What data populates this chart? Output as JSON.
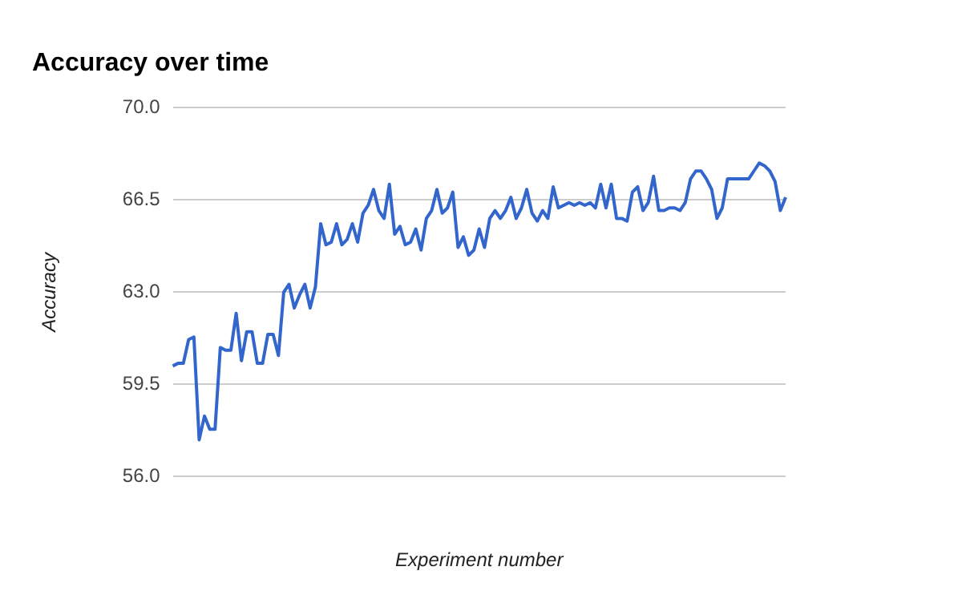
{
  "chart_data": {
    "type": "line",
    "title": "Accuracy over time",
    "xlabel": "Experiment number",
    "ylabel": "Accuracy",
    "categories": [
      null,
      null,
      null,
      null,
      null,
      null,
      null,
      null,
      null,
      null,
      null,
      null,
      null,
      null,
      null,
      null,
      null,
      null,
      null,
      null,
      null,
      null,
      null,
      null,
      null,
      null,
      null,
      null,
      null,
      null,
      null,
      null,
      null,
      null,
      null,
      null,
      null,
      null,
      null,
      null,
      null,
      null,
      null,
      null,
      null,
      null,
      null,
      null,
      null,
      null,
      null,
      null,
      null,
      null,
      null,
      null,
      null,
      null,
      null,
      null,
      null,
      null,
      null,
      null,
      null,
      null,
      null,
      null,
      null,
      null,
      null,
      null,
      null,
      null,
      null,
      null,
      null,
      null,
      null,
      null,
      null,
      null,
      null,
      null,
      null,
      null,
      null,
      null,
      null,
      null,
      null,
      null,
      null,
      null,
      null,
      null,
      null,
      null,
      null,
      null,
      null,
      null,
      null,
      null,
      null,
      null,
      null,
      null,
      null,
      null,
      null,
      null,
      null,
      null,
      null,
      null,
      null
    ],
    "series": [
      {
        "color": "#3366cc",
        "values": [
          60.2,
          60.3,
          60.3,
          61.2,
          61.3,
          57.4,
          58.3,
          57.8,
          57.8,
          60.9,
          60.8,
          60.8,
          62.2,
          60.4,
          61.5,
          61.5,
          60.3,
          60.3,
          61.4,
          61.4,
          60.6,
          63.0,
          63.3,
          62.4,
          62.9,
          63.3,
          62.4,
          63.2,
          65.6,
          64.8,
          64.9,
          65.6,
          64.8,
          65.0,
          65.6,
          64.9,
          66.0,
          66.3,
          66.9,
          66.1,
          65.8,
          67.1,
          65.2,
          65.5,
          64.8,
          64.9,
          65.4,
          64.6,
          65.8,
          66.1,
          66.9,
          66.0,
          66.2,
          66.8,
          64.7,
          65.1,
          64.4,
          64.6,
          65.4,
          64.7,
          65.8,
          66.1,
          65.8,
          66.1,
          66.6,
          65.8,
          66.2,
          66.9,
          66.0,
          65.7,
          66.1,
          65.8,
          67.0,
          66.2,
          66.3,
          66.4,
          66.3,
          66.4,
          66.3,
          66.4,
          66.2,
          67.1,
          66.2,
          67.1,
          65.8,
          65.8,
          65.7,
          66.8,
          67.0,
          66.1,
          66.4,
          67.4,
          66.1,
          66.1,
          66.2,
          66.2,
          66.1,
          66.4,
          67.3,
          67.6,
          67.6,
          67.3,
          66.9,
          65.8,
          66.2,
          67.3,
          67.3,
          67.3,
          67.3,
          67.3,
          67.6,
          67.9,
          67.8,
          67.6,
          67.2,
          66.1,
          66.6
        ]
      }
    ],
    "ylim": [
      56,
      70
    ],
    "yticks": [
      {
        "value": 56,
        "label": "56.0"
      },
      {
        "value": 59.5,
        "label": "59.5"
      },
      {
        "value": 63,
        "label": "63.0"
      },
      {
        "value": 66.5,
        "label": "66.5"
      },
      {
        "value": 70,
        "label": "70.0"
      }
    ],
    "grid": "y",
    "legend": false,
    "marker": "none",
    "line_style": "solid"
  }
}
